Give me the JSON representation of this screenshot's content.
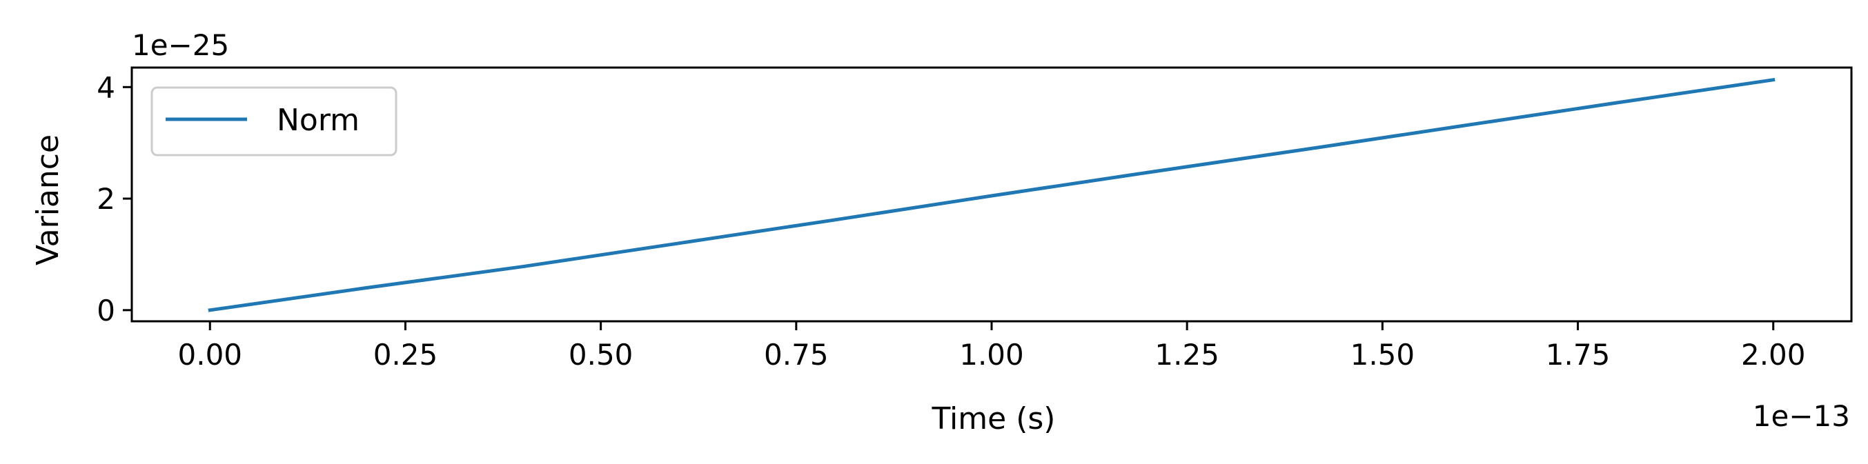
{
  "chart_data": {
    "type": "line",
    "xlabel": "Time (s)",
    "ylabel": "Variance",
    "x_offset_label": "1e−13",
    "y_offset_label": "1e−25",
    "x_scale": 1e-13,
    "y_scale": 1e-25,
    "xlim": [
      -0.1,
      2.1
    ],
    "ylim": [
      -0.2,
      4.35
    ],
    "x_ticks": [
      0.0,
      0.25,
      0.5,
      0.75,
      1.0,
      1.25,
      1.5,
      1.75,
      2.0
    ],
    "x_tick_labels": [
      "0.00",
      "0.25",
      "0.50",
      "0.75",
      "1.00",
      "1.25",
      "1.50",
      "1.75",
      "2.00"
    ],
    "y_ticks": [
      0,
      2,
      4
    ],
    "y_tick_labels": [
      "0",
      "2",
      "4"
    ],
    "grid": false,
    "legend_position": "upper-left",
    "series": [
      {
        "name": "Norm",
        "color": "#1f77b4",
        "x": [
          0.0,
          0.2,
          0.4,
          0.6,
          0.8,
          1.0,
          1.2,
          1.4,
          1.6,
          1.8,
          2.0
        ],
        "y": [
          0.0,
          0.4,
          0.78,
          1.2,
          1.62,
          2.05,
          2.47,
          2.88,
          3.3,
          3.72,
          4.13
        ]
      }
    ]
  }
}
